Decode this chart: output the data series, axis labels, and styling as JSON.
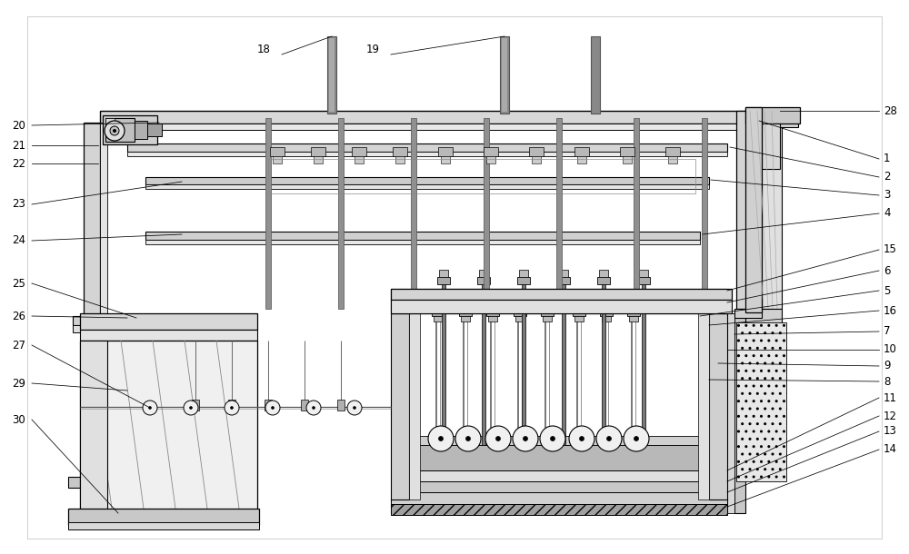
{
  "fig_width": 10.0,
  "fig_height": 6.1,
  "dpi": 100,
  "bg_color": "#ffffff",
  "lc": "#000000",
  "gray1": "#e8e8e8",
  "gray2": "#d0d0d0",
  "gray3": "#b0b0b0",
  "gray4": "#909090",
  "gray5": "#707070",
  "hatch_gray": "#c0c0c0"
}
